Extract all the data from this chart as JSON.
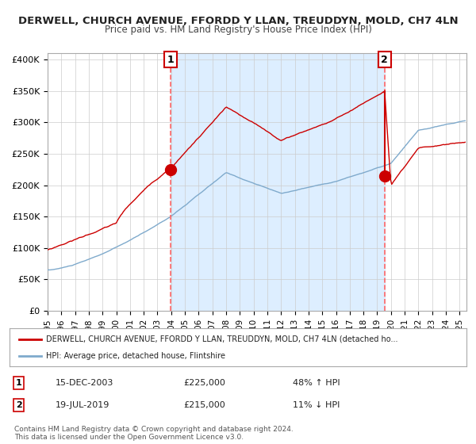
{
  "title_line1": "DERWELL, CHURCH AVENUE, FFORDD Y LLAN, TREUDDYN, MOLD, CH7 4LN",
  "title_line2": "Price paid vs. HM Land Registry's House Price Index (HPI)",
  "ylabel": "",
  "xlim_start": 1995.0,
  "xlim_end": 2025.5,
  "ylim_min": 0,
  "ylim_max": 410000,
  "yticks": [
    0,
    50000,
    100000,
    150000,
    200000,
    250000,
    300000,
    350000,
    400000
  ],
  "ytick_labels": [
    "£0",
    "£50K",
    "£100K",
    "£150K",
    "£200K",
    "£250K",
    "£300K",
    "£350K",
    "£400K"
  ],
  "xticks": [
    1995,
    1996,
    1997,
    1998,
    1999,
    2000,
    2001,
    2002,
    2003,
    2004,
    2005,
    2006,
    2007,
    2008,
    2009,
    2010,
    2011,
    2012,
    2013,
    2014,
    2015,
    2016,
    2017,
    2018,
    2019,
    2020,
    2021,
    2022,
    2023,
    2024,
    2025
  ],
  "red_line_color": "#cc0000",
  "blue_line_color": "#7faacc",
  "shade_color": "#ddeeff",
  "vline_color": "#ff6666",
  "point1_x": 2003.96,
  "point1_y": 225000,
  "point2_x": 2019.54,
  "point2_y": 215000,
  "legend_label_red": "DERWELL, CHURCH AVENUE, FFORDD Y LLAN, TREUDDYN, MOLD, CH7 4LN (detached ho...",
  "legend_label_blue": "HPI: Average price, detached house, Flintshire",
  "annot1_label": "1",
  "annot1_date": "15-DEC-2003",
  "annot1_price": "£225,000",
  "annot1_hpi": "48% ↑ HPI",
  "annot2_label": "2",
  "annot2_date": "19-JUL-2019",
  "annot2_price": "£215,000",
  "annot2_hpi": "11% ↓ HPI",
  "footer_line1": "Contains HM Land Registry data © Crown copyright and database right 2024.",
  "footer_line2": "This data is licensed under the Open Government Licence v3.0.",
  "bg_color": "#ffffff",
  "plot_bg_color": "#ffffff",
  "grid_color": "#cccccc"
}
